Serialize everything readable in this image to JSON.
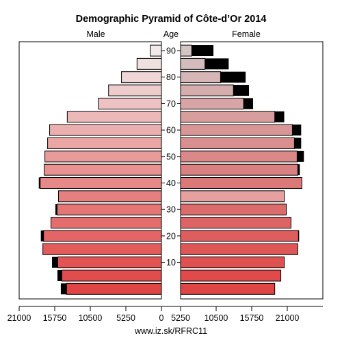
{
  "chart_data": {
    "type": "bar",
    "title": "Demographic Pyramid of Côte-d’Or 2014",
    "male_label": "Male",
    "female_label": "Female",
    "age_label": "Age",
    "footer": "www.iz.sk/RFRC11",
    "x_ticks": [
      "21000",
      "15750",
      "10500",
      "5250",
      "0",
      "5250",
      "10500",
      "15750",
      "21000"
    ],
    "xlim": [
      0,
      21000
    ],
    "age_ticks": [
      "10",
      "20",
      "30",
      "40",
      "50",
      "60",
      "70",
      "80",
      "90"
    ],
    "age_groups": [
      "0-4",
      "5-9",
      "10-14",
      "15-19",
      "20-24",
      "25-29",
      "30-34",
      "35-39",
      "40-44",
      "45-49",
      "50-54",
      "55-59",
      "60-64",
      "65-69",
      "70-74",
      "75-79",
      "80-84",
      "85-89",
      "90+"
    ],
    "series": [
      {
        "name": "Male",
        "values": [
          14000,
          14700,
          15300,
          17500,
          17400,
          16300,
          15400,
          15200,
          17900,
          17300,
          17200,
          16800,
          16500,
          13900,
          9300,
          7800,
          5900,
          3600,
          1650
        ],
        "excess": [
          850,
          650,
          850,
          0,
          400,
          0,
          250,
          0,
          200,
          0,
          0,
          0,
          0,
          0,
          0,
          0,
          0,
          0,
          0
        ]
      },
      {
        "name": "Female",
        "values": [
          13900,
          14800,
          15300,
          17300,
          17400,
          16300,
          15600,
          15300,
          17900,
          17300,
          17200,
          16800,
          16500,
          13900,
          9300,
          7800,
          5900,
          3600,
          1650
        ],
        "excess": [
          0,
          0,
          0,
          0,
          100,
          0,
          0,
          0,
          0,
          0,
          0,
          200,
          0,
          0,
          0,
          0,
          0,
          0,
          0
        ],
        "female_excess": [
          0,
          0,
          0,
          0,
          0,
          0,
          0,
          0,
          0,
          300,
          1000,
          800,
          1300,
          1400,
          1400,
          2300,
          3700,
          3500,
          3200
        ]
      }
    ],
    "colors": {
      "male_young": "#e04545",
      "male_old": "#f2eaea",
      "female_young": "#e04545",
      "female_old": "#d4c4c4",
      "excess": "#000000",
      "highlight_35_39": "#e6a0a0"
    }
  }
}
